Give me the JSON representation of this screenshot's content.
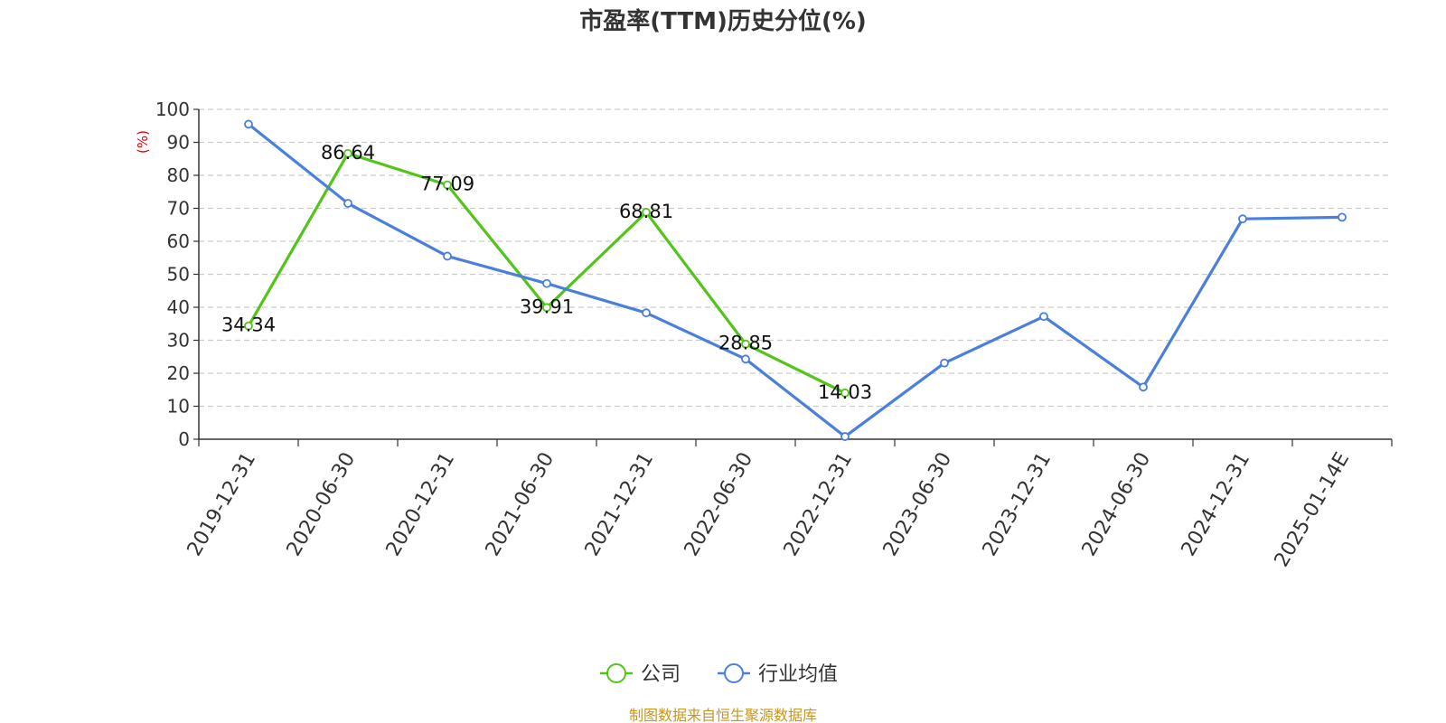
{
  "title": "市盈率(TTM)历史分位(%)",
  "source_note": "制图数据来自恒生聚源数据库",
  "chart_data": {
    "type": "line",
    "title": "市盈率(TTM)历史分位(%)",
    "ylabel": "(%)",
    "xlabel": "",
    "ylim": [
      0,
      100
    ],
    "yticks": [
      0,
      10,
      20,
      30,
      40,
      50,
      60,
      70,
      80,
      90,
      100
    ],
    "grid": true,
    "legend_position": "bottom-center",
    "categories": [
      "2019-12-31",
      "2020-06-30",
      "2020-12-31",
      "2021-06-30",
      "2021-12-31",
      "2022-06-30",
      "2022-12-31",
      "2023-06-30",
      "2023-12-31",
      "2024-06-30",
      "2024-12-31",
      "2025-01-14E"
    ],
    "series": [
      {
        "name": "公司",
        "color": "#52c41a",
        "values": [
          34.34,
          86.64,
          77.09,
          39.91,
          68.81,
          28.85,
          14.03,
          null,
          null,
          null,
          null,
          null
        ],
        "labels": [
          "34.34",
          "86.64",
          "77.09",
          "39.91",
          "68.81",
          "28.85",
          "14.03",
          null,
          null,
          null,
          null,
          null
        ]
      },
      {
        "name": "行业均值",
        "color": "#4a7fdc",
        "values": [
          95.5,
          71.5,
          55.5,
          47.2,
          38.3,
          24.3,
          0.8,
          23.1,
          37.2,
          15.8,
          66.8,
          67.3
        ]
      }
    ]
  }
}
